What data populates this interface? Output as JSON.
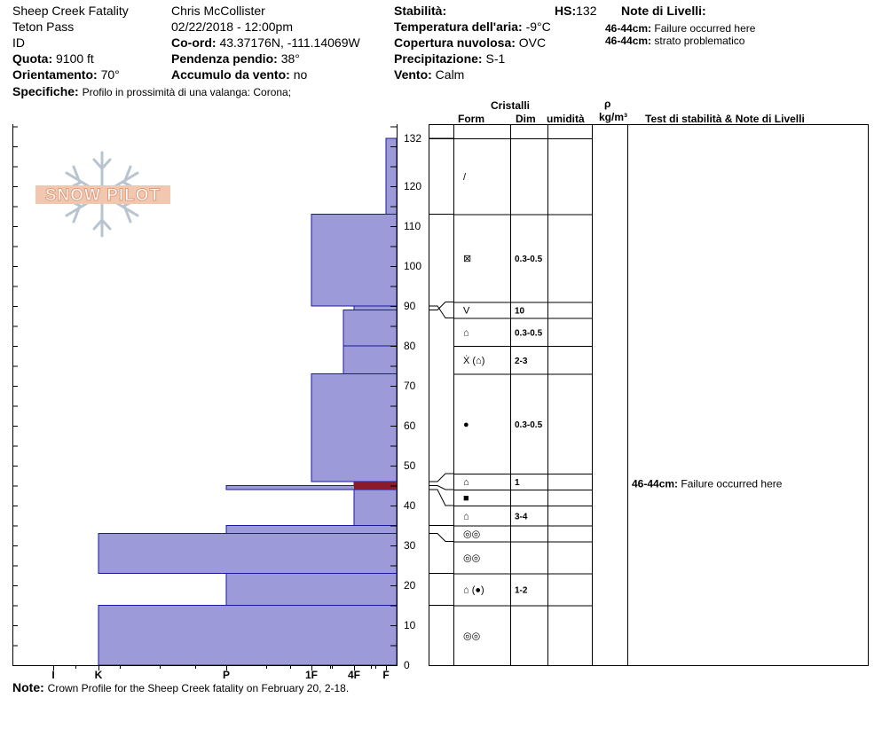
{
  "header": {
    "title": "Sheep Creek Fatality",
    "location": "Teton Pass",
    "state": "ID",
    "elevation_label": "Quota:",
    "elevation_value": "9100 ft",
    "aspect_label": "Orientamento:",
    "aspect_value": "70°",
    "specifics_label": "Specifiche:",
    "specifics_value": "Profilo in prossimità di una valanga: Corona;",
    "observer": "Chris McCollister",
    "datetime": "02/22/2018 - 12:00pm",
    "coord_label": "Co-ord:",
    "coord_value": "43.37176N, -111.14069W",
    "slope_label": "Pendenza pendio:",
    "slope_value": "38°",
    "wind_load_label": "Accumulo da vento:",
    "wind_load_value": "no",
    "stability_label": "Stabilità:",
    "air_temp_label": "Temperatura dell'aria:",
    "air_temp_value": "-9°C",
    "cloud_label": "Copertura nuvolosa:",
    "cloud_value": "OVC",
    "precip_label": "Precipitazione:",
    "precip_value": "S-1",
    "wind_label": "Vento:",
    "wind_value": "Calm",
    "hs_label": "HS:",
    "hs_value": "132",
    "layer_notes_label": "Note di Livelli:",
    "layer_notes": [
      {
        "range": "46-44cm:",
        "text": "Failure occurred here"
      },
      {
        "range": "46-44cm:",
        "text": "strato problematico"
      }
    ]
  },
  "logo": {
    "text": "SNOW PILOT"
  },
  "table_headers": {
    "crystals": "Cristalli",
    "form": "Form",
    "size": "Dim",
    "moisture": "umidità",
    "density": "ρ",
    "density_unit": "kg/m³",
    "tests": "Test di stabilità & Note di Livelli"
  },
  "footer": {
    "note_label": "Note:",
    "note_text": "Crown Profile for the Sheep Creek fatality on February 20, 2-18."
  },
  "chart_data": {
    "type": "bar",
    "orientation": "horizontal",
    "description_axis": "snow depth (cm)",
    "ylim": [
      0,
      135
    ],
    "y_ticks": [
      0,
      10,
      20,
      30,
      40,
      50,
      60,
      70,
      80,
      90,
      100,
      110,
      120,
      132
    ],
    "hardness_scale": [
      "I",
      "K",
      "P",
      "1F",
      "4F",
      "F"
    ],
    "fill_color": "#9c9ad8",
    "edge_color": "#1a1a9e",
    "weak_layer_color": "#8b1a2a",
    "hardness_layers": [
      {
        "bottom": 0,
        "top": 15,
        "hardness": "K"
      },
      {
        "bottom": 15,
        "top": 23,
        "hardness": "P"
      },
      {
        "bottom": 23,
        "top": 33,
        "hardness": "K"
      },
      {
        "bottom": 33,
        "top": 35,
        "hardness": "P"
      },
      {
        "bottom": 35,
        "top": 44,
        "hardness": "4F"
      },
      {
        "bottom": 44,
        "top": 45,
        "hardness": "P"
      },
      {
        "bottom": 45,
        "top": 46,
        "hardness": "4F"
      },
      {
        "bottom": 46,
        "top": 73,
        "hardness": "1F"
      },
      {
        "bottom": 73,
        "top": 80,
        "hardness": "4F+"
      },
      {
        "bottom": 80,
        "top": 89,
        "hardness": "4F+"
      },
      {
        "bottom": 89,
        "top": 90,
        "hardness": "4F"
      },
      {
        "bottom": 90,
        "top": 113,
        "hardness": "1F"
      },
      {
        "bottom": 113,
        "top": 132,
        "hardness": "F"
      }
    ],
    "weak_layer": {
      "bottom": 44,
      "top": 46
    },
    "crystal_layers": [
      {
        "bottom": 113,
        "top": 132,
        "form": "/",
        "size": ""
      },
      {
        "bottom": 91,
        "top": 113,
        "form": "⊠",
        "size": "0.3-0.5"
      },
      {
        "bottom": 87,
        "top": 91,
        "form": "V",
        "size": "10"
      },
      {
        "bottom": 80,
        "top": 87,
        "form": "⌂",
        "size": "0.3-0.5"
      },
      {
        "bottom": 73,
        "top": 80,
        "form": "Ẋ (⌂)",
        "size": "2-3"
      },
      {
        "bottom": 48,
        "top": 73,
        "form": "●",
        "size": "0.3-0.5"
      },
      {
        "bottom": 44,
        "top": 48,
        "form": "⌂",
        "size": "1"
      },
      {
        "bottom": 40,
        "top": 44,
        "form": "■",
        "size": ""
      },
      {
        "bottom": 35,
        "top": 40,
        "form": "⌂",
        "size": "3-4"
      },
      {
        "bottom": 31,
        "top": 35,
        "form": "◎◎",
        "size": ""
      },
      {
        "bottom": 23,
        "top": 31,
        "form": "◎◎",
        "size": ""
      },
      {
        "bottom": 15,
        "top": 23,
        "form": "⌂ (●)",
        "size": "1-2"
      },
      {
        "bottom": 0,
        "top": 15,
        "form": "◎◎",
        "size": ""
      }
    ],
    "test_notes": [
      {
        "depth": 45,
        "range": "46-44cm:",
        "text": "Failure occurred here"
      }
    ]
  }
}
